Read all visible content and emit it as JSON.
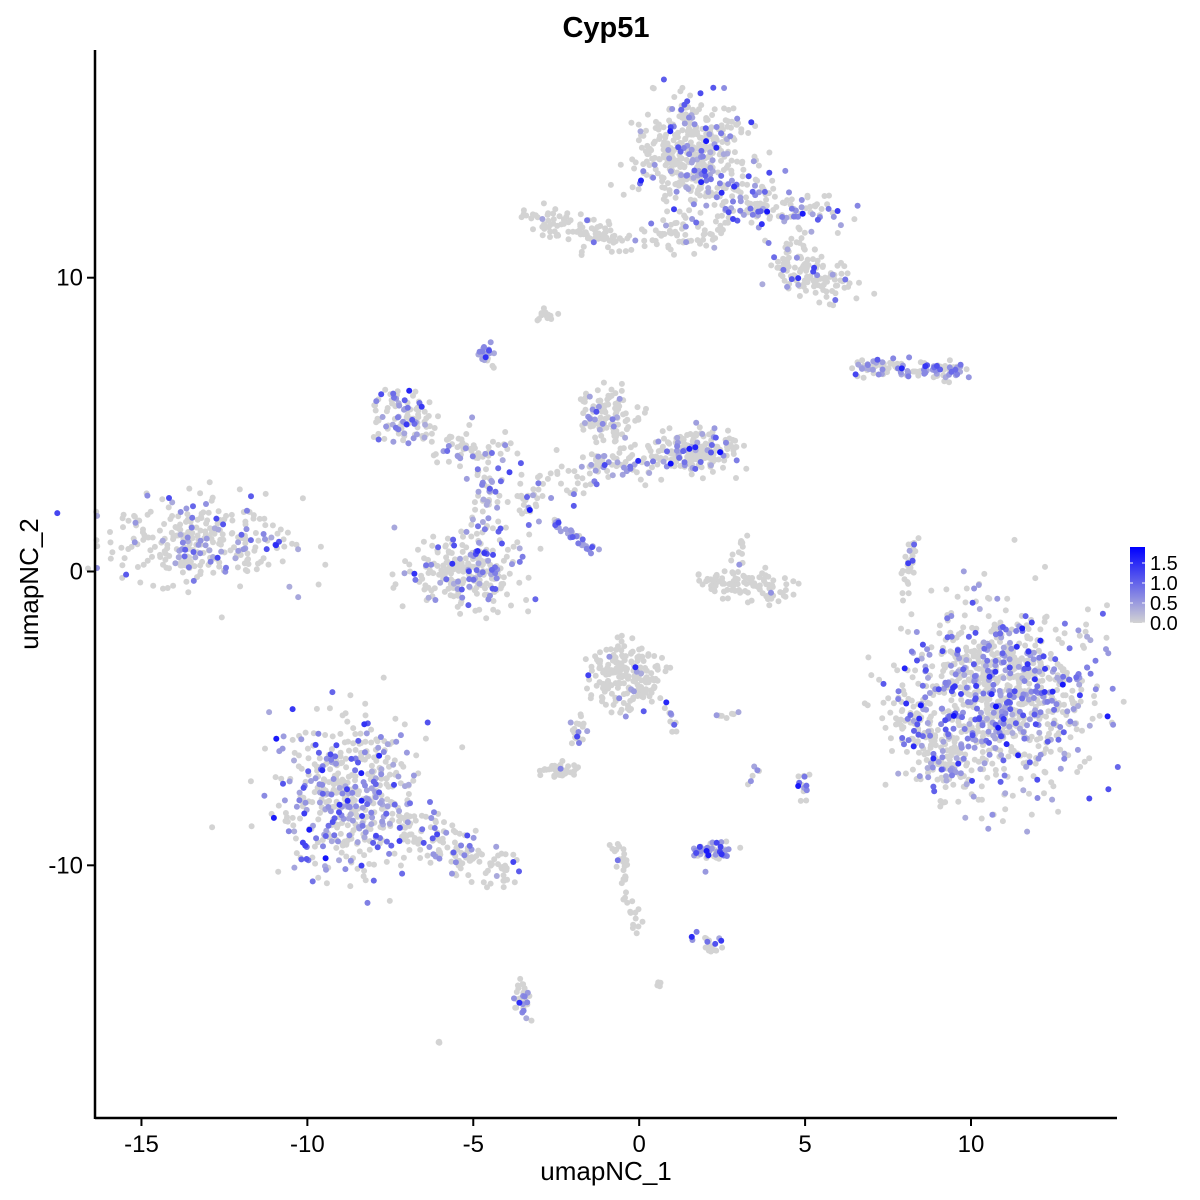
{
  "chart_data": {
    "type": "scatter",
    "title": "Cyp51",
    "xlabel": "umapNC_1",
    "ylabel": "umapNC_2",
    "xlim": [
      -16.4,
      14.4
    ],
    "ylim": [
      -18.6,
      17.75
    ],
    "x_ticks": [
      -15,
      -10,
      -5,
      0,
      5,
      10
    ],
    "x_tick_labels": [
      "-15",
      "-10",
      "-5",
      "0",
      "5",
      "10"
    ],
    "y_ticks": [
      -10,
      0,
      10
    ],
    "y_tick_labels": [
      "-10",
      "0",
      "10"
    ],
    "grid": false,
    "colors": {
      "low": "#d3d3d3",
      "high": "#0000ff"
    },
    "legend": {
      "placement": "right",
      "ticks": [
        0.0,
        0.5,
        1.0,
        1.5
      ],
      "tick_labels": [
        "0.0",
        "0.5",
        "1.0",
        "1.5"
      ],
      "range": [
        0,
        1.9
      ]
    },
    "clusters": [
      {
        "shape": "blob",
        "center": [
          -13.2,
          1.05
        ],
        "spread": [
          1.3,
          0.75
        ],
        "n": 300,
        "expressed_fraction": 0.25
      },
      {
        "shape": "blob",
        "center": [
          -8.85,
          -7.6
        ],
        "spread": [
          1.0,
          1.3
        ],
        "n": 480,
        "expressed_fraction": 0.35
      },
      {
        "shape": "line",
        "from": [
          -7.4,
          -8.4
        ],
        "to": [
          -3.9,
          -10.4
        ],
        "width": 0.35,
        "n": 160,
        "expressed_fraction": 0.2
      },
      {
        "shape": "blob",
        "center": [
          1.7,
          14.2
        ],
        "spread": [
          0.85,
          0.9
        ],
        "n": 420,
        "expressed_fraction": 0.2
      },
      {
        "shape": "line",
        "from": [
          2.2,
          12.8
        ],
        "to": [
          5.6,
          12.0
        ],
        "width": 0.4,
        "n": 150,
        "expressed_fraction": 0.35
      },
      {
        "shape": "line",
        "from": [
          4.3,
          10.8
        ],
        "to": [
          6.0,
          9.6
        ],
        "width": 0.35,
        "n": 130,
        "expressed_fraction": 0.1
      },
      {
        "shape": "line",
        "from": [
          -3.3,
          12.0
        ],
        "to": [
          -0.5,
          11.2
        ],
        "width": 0.3,
        "n": 100,
        "expressed_fraction": 0.05
      },
      {
        "shape": "line",
        "from": [
          0.0,
          11.3
        ],
        "to": [
          2.4,
          11.6
        ],
        "width": 0.3,
        "n": 60,
        "expressed_fraction": 0.1
      },
      {
        "shape": "blob",
        "center": [
          -2.8,
          8.7
        ],
        "spread": [
          0.15,
          0.1
        ],
        "n": 15,
        "expressed_fraction": 0.0
      },
      {
        "shape": "blob",
        "center": [
          -4.6,
          7.4
        ],
        "spread": [
          0.15,
          0.2
        ],
        "n": 25,
        "expressed_fraction": 0.7
      },
      {
        "shape": "blob",
        "center": [
          -7.3,
          5.5
        ],
        "spread": [
          0.4,
          0.5
        ],
        "n": 70,
        "expressed_fraction": 0.4
      },
      {
        "shape": "line",
        "from": [
          -7.0,
          5.0
        ],
        "to": [
          -4.0,
          3.8
        ],
        "width": 0.4,
        "n": 90,
        "expressed_fraction": 0.3
      },
      {
        "shape": "line",
        "from": [
          -4.6,
          4.2
        ],
        "to": [
          -4.6,
          1.2
        ],
        "width": 0.25,
        "n": 50,
        "expressed_fraction": 0.45
      },
      {
        "shape": "blob",
        "center": [
          -5.2,
          0.0
        ],
        "spread": [
          0.8,
          0.6
        ],
        "n": 260,
        "expressed_fraction": 0.25
      },
      {
        "shape": "line",
        "from": [
          -4.0,
          2.0
        ],
        "to": [
          -1.2,
          3.8
        ],
        "width": 0.4,
        "n": 70,
        "expressed_fraction": 0.2
      },
      {
        "shape": "line",
        "from": [
          -1.2,
          3.6
        ],
        "to": [
          2.2,
          4.0
        ],
        "width": 0.3,
        "n": 90,
        "expressed_fraction": 0.35
      },
      {
        "shape": "blob",
        "center": [
          -0.9,
          5.2
        ],
        "spread": [
          0.45,
          0.55
        ],
        "n": 110,
        "expressed_fraction": 0.15
      },
      {
        "shape": "blob",
        "center": [
          1.8,
          4.2
        ],
        "spread": [
          0.6,
          0.35
        ],
        "n": 170,
        "expressed_fraction": 0.15
      },
      {
        "shape": "line",
        "from": [
          -2.6,
          1.7
        ],
        "to": [
          -1.3,
          0.7
        ],
        "width": 0.08,
        "n": 30,
        "expressed_fraction": 0.85
      },
      {
        "shape": "line",
        "from": [
          2.0,
          -0.3
        ],
        "to": [
          4.4,
          -0.7
        ],
        "width": 0.25,
        "n": 100,
        "expressed_fraction": 0.02
      },
      {
        "shape": "blob",
        "center": [
          3.1,
          0.8
        ],
        "spread": [
          0.2,
          0.3
        ],
        "n": 12,
        "expressed_fraction": 0.3
      },
      {
        "shape": "line",
        "from": [
          6.5,
          7.0
        ],
        "to": [
          9.8,
          6.8
        ],
        "width": 0.15,
        "n": 110,
        "expressed_fraction": 0.4
      },
      {
        "shape": "line",
        "from": [
          8.3,
          1.2
        ],
        "to": [
          8.0,
          -1.0
        ],
        "width": 0.1,
        "n": 30,
        "expressed_fraction": 0.2
      },
      {
        "shape": "blob",
        "center": [
          10.8,
          -4.3
        ],
        "spread": [
          1.4,
          1.5
        ],
        "n": 1000,
        "expressed_fraction": 0.35
      },
      {
        "shape": "line",
        "from": [
          7.8,
          -4.6
        ],
        "to": [
          9.4,
          -6.8
        ],
        "width": 0.4,
        "n": 120,
        "expressed_fraction": 0.25
      },
      {
        "shape": "blob",
        "center": [
          -0.4,
          -3.6
        ],
        "spread": [
          0.5,
          0.55
        ],
        "n": 200,
        "expressed_fraction": 0.08
      },
      {
        "shape": "line",
        "from": [
          0.6,
          -4.0
        ],
        "to": [
          1.2,
          -5.6
        ],
        "width": 0.1,
        "n": 15,
        "expressed_fraction": 0.3
      },
      {
        "shape": "line",
        "from": [
          -1.8,
          -5.0
        ],
        "to": [
          -2.0,
          -6.0
        ],
        "width": 0.15,
        "n": 20,
        "expressed_fraction": 0.2
      },
      {
        "shape": "blob",
        "center": [
          -2.4,
          -6.8
        ],
        "spread": [
          0.3,
          0.12
        ],
        "n": 40,
        "expressed_fraction": 0.05
      },
      {
        "shape": "blob",
        "center": [
          2.2,
          -9.5
        ],
        "spread": [
          0.35,
          0.15
        ],
        "n": 60,
        "expressed_fraction": 0.6
      },
      {
        "shape": "line",
        "from": [
          -0.7,
          -9.2
        ],
        "to": [
          0.0,
          -12.2
        ],
        "width": 0.1,
        "n": 40,
        "expressed_fraction": 0.05
      },
      {
        "shape": "line",
        "from": [
          1.6,
          -12.4
        ],
        "to": [
          2.4,
          -12.8
        ],
        "width": 0.1,
        "n": 20,
        "expressed_fraction": 0.3
      },
      {
        "shape": "line",
        "from": [
          -3.6,
          -13.8
        ],
        "to": [
          -3.5,
          -15.2
        ],
        "width": 0.12,
        "n": 30,
        "expressed_fraction": 0.3
      },
      {
        "shape": "blob",
        "center": [
          -6.05,
          -16.0
        ],
        "spread": [
          0.05,
          0.05
        ],
        "n": 3,
        "expressed_fraction": 0.0
      },
      {
        "shape": "blob",
        "center": [
          4.9,
          -7.3
        ],
        "spread": [
          0.1,
          0.25
        ],
        "n": 15,
        "expressed_fraction": 0.6
      },
      {
        "shape": "blob",
        "center": [
          0.6,
          -14.0
        ],
        "spread": [
          0.05,
          0.05
        ],
        "n": 5,
        "expressed_fraction": 0.0
      },
      {
        "shape": "line",
        "from": [
          2.3,
          -5.0
        ],
        "to": [
          3.0,
          -4.8
        ],
        "width": 0.05,
        "n": 8,
        "expressed_fraction": 0.2
      },
      {
        "shape": "line",
        "from": [
          3.3,
          -7.3
        ],
        "to": [
          3.6,
          -6.6
        ],
        "width": 0.05,
        "n": 6,
        "expressed_fraction": 0.2
      }
    ]
  }
}
